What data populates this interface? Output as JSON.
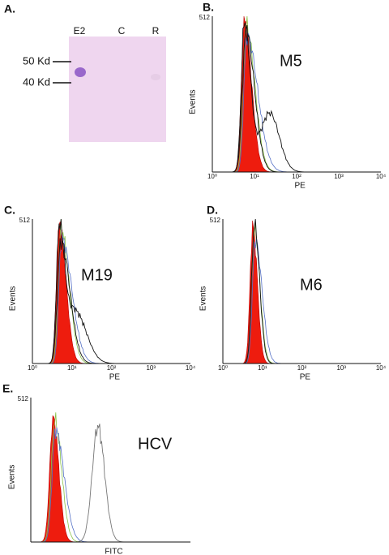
{
  "panel_a": {
    "label": "A.",
    "lanes": [
      "E2",
      "C",
      "R"
    ],
    "markers": [
      "50 Kd",
      "40 Kd"
    ]
  },
  "panels": [
    {
      "label": "B.",
      "name": "M5",
      "y_max_label": "512",
      "y_label": "Events",
      "x_label": "PE",
      "x_ticks": [
        "10⁰",
        "10¹",
        "10²",
        "10³",
        "10⁴"
      ]
    },
    {
      "label": "C.",
      "name": "M19",
      "y_max_label": "512",
      "y_label": "Events",
      "x_label": "PE",
      "x_ticks": [
        "10⁰",
        "10¹",
        "10²",
        "10³",
        "10⁴"
      ]
    },
    {
      "label": "D.",
      "name": "M6",
      "y_max_label": "512",
      "y_label": "Events",
      "x_label": "PE",
      "x_ticks": [
        "10⁰",
        "10¹",
        "10²",
        "10³",
        "10⁴"
      ]
    },
    {
      "label": "E.",
      "name": "HCV",
      "y_max_label": "512",
      "y_label": "Events",
      "x_label": "FITC"
    }
  ]
}
